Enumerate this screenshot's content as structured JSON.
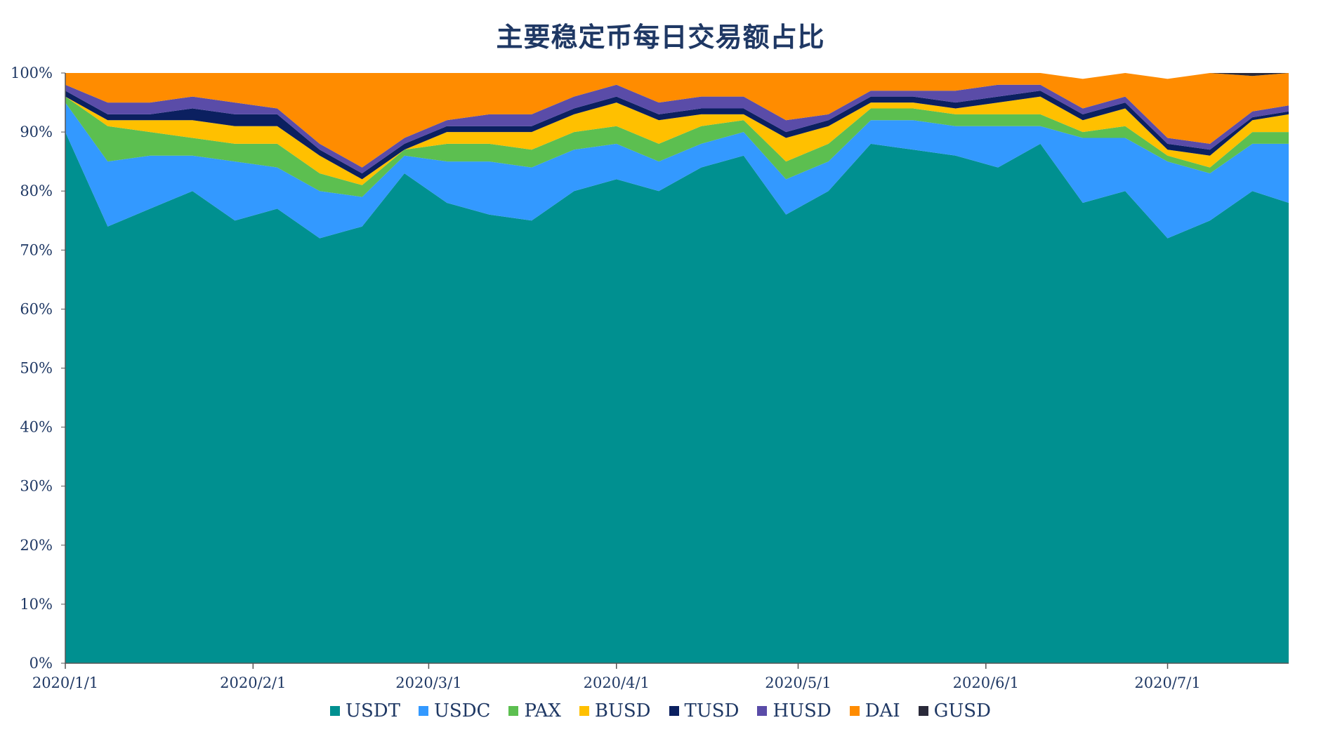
{
  "chart_data": {
    "type": "area",
    "stacked": "percent",
    "title": "主要稳定币每日交易额占比",
    "xlabel": "",
    "ylabel": "",
    "ylim": [
      0,
      100
    ],
    "y_ticks": [
      "0%",
      "10%",
      "20%",
      "30%",
      "40%",
      "50%",
      "60%",
      "70%",
      "80%",
      "90%",
      "100%"
    ],
    "x_ticks": [
      "2020/1/1",
      "2020/2/1",
      "2020/3/1",
      "2020/4/1",
      "2020/5/1",
      "2020/6/1",
      "2020/7/1"
    ],
    "x_range": [
      "2020/1/1",
      "2020/7/21"
    ],
    "legend_position": "bottom",
    "series_colors": {
      "USDT": "#009090",
      "USDC": "#3399ff",
      "PAX": "#5cbf50",
      "BUSD": "#ffc000",
      "TUSD": "#0b2060",
      "HUSD": "#5a4ca8",
      "DAI": "#ff8c00",
      "GUSD": "#2a2a3a"
    },
    "series": [
      {
        "name": "USDT",
        "x": [
          "2020/1/1",
          "2020/1/8",
          "2020/1/15",
          "2020/1/22",
          "2020/1/29",
          "2020/2/5",
          "2020/2/12",
          "2020/2/19",
          "2020/2/26",
          "2020/3/4",
          "2020/3/11",
          "2020/3/18",
          "2020/3/25",
          "2020/4/1",
          "2020/4/8",
          "2020/4/15",
          "2020/4/22",
          "2020/4/29",
          "2020/5/6",
          "2020/5/13",
          "2020/5/20",
          "2020/5/27",
          "2020/6/3",
          "2020/6/10",
          "2020/6/17",
          "2020/6/24",
          "2020/7/1",
          "2020/7/8",
          "2020/7/15",
          "2020/7/21"
        ],
        "values": [
          90,
          74,
          77,
          80,
          75,
          77,
          72,
          74,
          83,
          78,
          76,
          75,
          80,
          82,
          80,
          84,
          86,
          76,
          80,
          88,
          87,
          86,
          84,
          88,
          78,
          80,
          72,
          75,
          80,
          78
        ]
      },
      {
        "name": "USDC",
        "x": [
          "2020/1/1",
          "2020/1/8",
          "2020/1/15",
          "2020/1/22",
          "2020/1/29",
          "2020/2/5",
          "2020/2/12",
          "2020/2/19",
          "2020/2/26",
          "2020/3/4",
          "2020/3/11",
          "2020/3/18",
          "2020/3/25",
          "2020/4/1",
          "2020/4/8",
          "2020/4/15",
          "2020/4/22",
          "2020/4/29",
          "2020/5/6",
          "2020/5/13",
          "2020/5/20",
          "2020/5/27",
          "2020/6/3",
          "2020/6/10",
          "2020/6/17",
          "2020/6/24",
          "2020/7/1",
          "2020/7/8",
          "2020/7/15",
          "2020/7/21"
        ],
        "values": [
          5,
          11,
          9,
          6,
          10,
          7,
          8,
          5,
          3,
          7,
          9,
          9,
          7,
          6,
          5,
          4,
          4,
          6,
          5,
          4,
          5,
          5,
          7,
          3,
          11,
          9,
          13,
          8,
          8,
          10
        ]
      },
      {
        "name": "PAX",
        "x": [
          "2020/1/1",
          "2020/1/8",
          "2020/1/15",
          "2020/1/22",
          "2020/1/29",
          "2020/2/5",
          "2020/2/12",
          "2020/2/19",
          "2020/2/26",
          "2020/3/4",
          "2020/3/11",
          "2020/3/18",
          "2020/3/25",
          "2020/4/1",
          "2020/4/8",
          "2020/4/15",
          "2020/4/22",
          "2020/4/29",
          "2020/5/6",
          "2020/5/13",
          "2020/5/20",
          "2020/5/27",
          "2020/6/3",
          "2020/6/10",
          "2020/6/17",
          "2020/6/24",
          "2020/7/1",
          "2020/7/8",
          "2020/7/15",
          "2020/7/21"
        ],
        "values": [
          1,
          6,
          4,
          3,
          3,
          4,
          3,
          2,
          1,
          3,
          3,
          3,
          3,
          3,
          3,
          3,
          2,
          3,
          3,
          2,
          2,
          2,
          2,
          2,
          1,
          2,
          1,
          1,
          2,
          2
        ]
      },
      {
        "name": "BUSD",
        "x": [
          "2020/1/1",
          "2020/1/8",
          "2020/1/15",
          "2020/1/22",
          "2020/1/29",
          "2020/2/5",
          "2020/2/12",
          "2020/2/19",
          "2020/2/26",
          "2020/3/4",
          "2020/3/11",
          "2020/3/18",
          "2020/3/25",
          "2020/4/1",
          "2020/4/8",
          "2020/4/15",
          "2020/4/22",
          "2020/4/29",
          "2020/5/6",
          "2020/5/13",
          "2020/5/20",
          "2020/5/27",
          "2020/6/3",
          "2020/6/10",
          "2020/6/17",
          "2020/6/24",
          "2020/7/1",
          "2020/7/8",
          "2020/7/15",
          "2020/7/21"
        ],
        "values": [
          0,
          1,
          2,
          3,
          3,
          3,
          3,
          1,
          0,
          2,
          2,
          3,
          3,
          4,
          4,
          2,
          1,
          4,
          3,
          1,
          1,
          1,
          2,
          3,
          2,
          3,
          1,
          2,
          2,
          3
        ]
      },
      {
        "name": "TUSD",
        "x": [
          "2020/1/1",
          "2020/1/8",
          "2020/1/15",
          "2020/1/22",
          "2020/1/29",
          "2020/2/5",
          "2020/2/12",
          "2020/2/19",
          "2020/2/26",
          "2020/3/4",
          "2020/3/11",
          "2020/3/18",
          "2020/3/25",
          "2020/4/1",
          "2020/4/8",
          "2020/4/15",
          "2020/4/22",
          "2020/4/29",
          "2020/5/6",
          "2020/5/13",
          "2020/5/20",
          "2020/5/27",
          "2020/6/3",
          "2020/6/10",
          "2020/6/17",
          "2020/6/24",
          "2020/7/1",
          "2020/7/8",
          "2020/7/15",
          "2020/7/21"
        ],
        "values": [
          1,
          1,
          1,
          2,
          2,
          2,
          1,
          1,
          1,
          1,
          1,
          1,
          1,
          1,
          1,
          1,
          1,
          1,
          1,
          1,
          1,
          1,
          1,
          1,
          1,
          1,
          1,
          1,
          0.5,
          0.5
        ]
      },
      {
        "name": "HUSD",
        "x": [
          "2020/1/1",
          "2020/1/8",
          "2020/1/15",
          "2020/1/22",
          "2020/1/29",
          "2020/2/5",
          "2020/2/12",
          "2020/2/19",
          "2020/2/26",
          "2020/3/4",
          "2020/3/11",
          "2020/3/18",
          "2020/3/25",
          "2020/4/1",
          "2020/4/8",
          "2020/4/15",
          "2020/4/22",
          "2020/4/29",
          "2020/5/6",
          "2020/5/13",
          "2020/5/20",
          "2020/5/27",
          "2020/6/3",
          "2020/6/10",
          "2020/6/17",
          "2020/6/24",
          "2020/7/1",
          "2020/7/8",
          "2020/7/15",
          "2020/7/21"
        ],
        "values": [
          1,
          2,
          2,
          2,
          2,
          1,
          1,
          1,
          1,
          1,
          2,
          2,
          2,
          2,
          2,
          2,
          2,
          2,
          1,
          1,
          1,
          2,
          2,
          1,
          1,
          1,
          1,
          1,
          1,
          1
        ]
      },
      {
        "name": "DAI",
        "x": [
          "2020/1/1",
          "2020/1/8",
          "2020/1/15",
          "2020/1/22",
          "2020/1/29",
          "2020/2/5",
          "2020/2/12",
          "2020/2/19",
          "2020/2/26",
          "2020/3/4",
          "2020/3/11",
          "2020/3/18",
          "2020/3/25",
          "2020/4/1",
          "2020/4/8",
          "2020/4/15",
          "2020/4/22",
          "2020/4/29",
          "2020/5/6",
          "2020/5/13",
          "2020/5/20",
          "2020/5/27",
          "2020/6/3",
          "2020/6/10",
          "2020/6/17",
          "2020/6/24",
          "2020/7/1",
          "2020/7/8",
          "2020/7/15",
          "2020/7/21"
        ],
        "values": [
          2,
          5,
          5,
          4,
          5,
          6,
          12,
          16,
          11,
          8,
          7,
          7,
          4,
          2,
          5,
          4,
          4,
          8,
          7,
          3,
          3,
          3,
          2,
          2,
          5,
          4,
          10,
          12,
          6,
          5.5
        ]
      },
      {
        "name": "GUSD",
        "x": [
          "2020/1/1",
          "2020/1/8",
          "2020/1/15",
          "2020/1/22",
          "2020/1/29",
          "2020/2/5",
          "2020/2/12",
          "2020/2/19",
          "2020/2/26",
          "2020/3/4",
          "2020/3/11",
          "2020/3/18",
          "2020/3/25",
          "2020/4/1",
          "2020/4/8",
          "2020/4/15",
          "2020/4/22",
          "2020/4/29",
          "2020/5/6",
          "2020/5/13",
          "2020/5/20",
          "2020/5/27",
          "2020/6/3",
          "2020/6/10",
          "2020/6/17",
          "2020/6/24",
          "2020/7/1",
          "2020/7/8",
          "2020/7/15",
          "2020/7/21"
        ],
        "values": [
          0,
          0,
          0,
          0,
          0,
          0,
          0,
          0,
          0,
          0,
          0,
          0,
          0,
          0,
          0,
          0,
          0,
          0,
          0,
          0,
          0,
          0,
          0,
          0,
          0,
          0,
          0,
          0,
          0.5,
          0
        ]
      }
    ]
  }
}
